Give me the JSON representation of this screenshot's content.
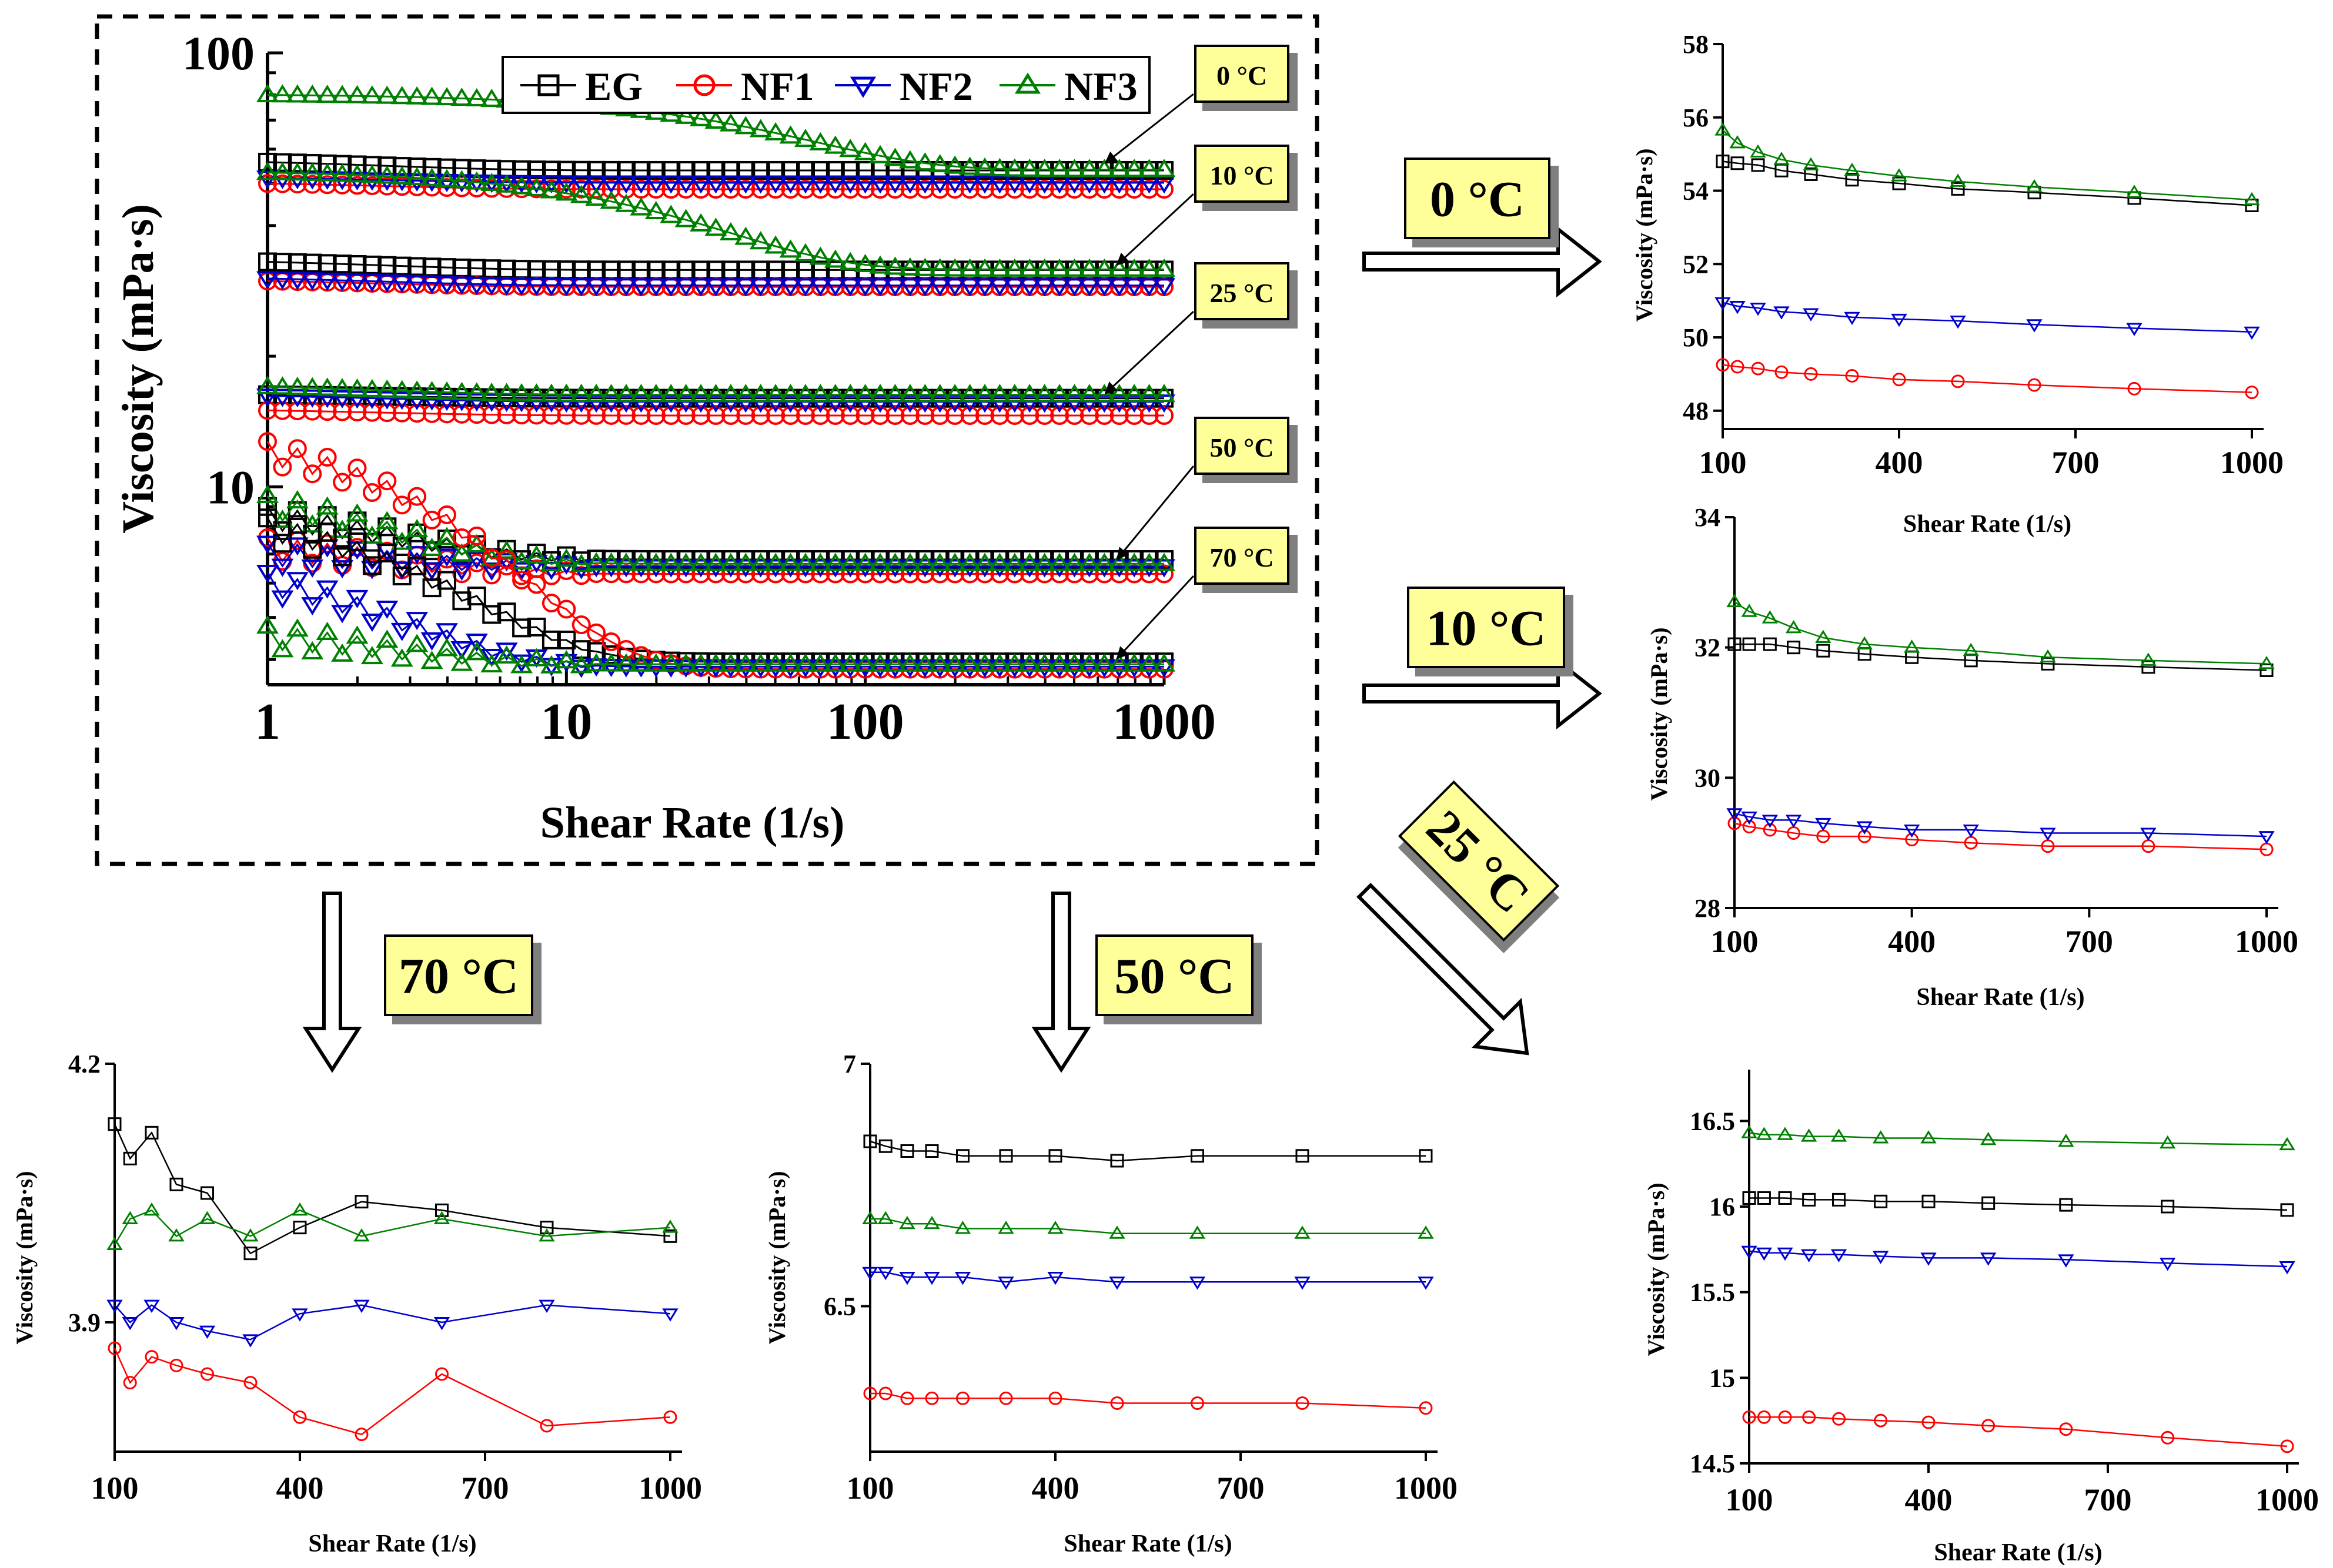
{
  "colors": {
    "EG": "#000000",
    "NF1": "#ff0000",
    "NF2": "#0000cc",
    "NF3": "#008000",
    "callout_fill": "#ffff99",
    "callout_shadow": "#7f7f7f"
  },
  "legend": [
    "EG",
    "NF1",
    "NF2",
    "NF3"
  ],
  "main_chart": {
    "xlabel": "Shear Rate (1/s)",
    "ylabel": "Viscosity (mPa·s)",
    "xticks": [
      "1",
      "10",
      "100",
      "1000"
    ],
    "yticks": [
      "100",
      "10"
    ],
    "temp_labels": [
      "0 °C",
      "10 °C",
      "25 °C",
      "50 °C",
      "70 °C"
    ]
  },
  "arrow_labels": {
    "t0": "0 °C",
    "t10": "10 °C",
    "t25": "25 °C",
    "t50": "50 °C",
    "t70": "70 °C"
  },
  "chart_data": [
    {
      "id": "main",
      "type": "scatter",
      "title": "",
      "xlabel": "Shear Rate (1/s)",
      "ylabel": "Viscosity (mPa·s)",
      "xscale": "log",
      "yscale": "log",
      "xlim": [
        1,
        1000
      ],
      "ylim": [
        3.5,
        100
      ],
      "legend": "top-right",
      "curves": [
        {
          "temp": "0 °C",
          "series": {
            "EG": [
              56,
              53.6
            ],
            "NF1": [
              50,
              48.5
            ],
            "NF2": [
              51.5,
              50.2
            ],
            "NF3": [
              80,
              53.8
            ]
          },
          "decay": {
            "NF3": 60
          }
        },
        {
          "temp": "10 °C",
          "series": {
            "EG": [
              33,
              31.6
            ],
            "NF1": [
              29.8,
              28.9
            ],
            "NF2": [
              30.2,
              29.1
            ],
            "NF3": [
              53,
              31.7
            ]
          },
          "decay": {
            "NF3": 30
          }
        },
        {
          "temp": "25 °C",
          "series": {
            "EG": [
              16.3,
              16.0
            ],
            "NF1": [
              15.0,
              14.6
            ],
            "NF2": [
              16.2,
              15.7
            ],
            "NF3": [
              17.0,
              16.3
            ]
          },
          "decay": {}
        },
        {
          "temp": "50 °C",
          "series": {
            "EG": [
              8.5,
              6.8
            ],
            "NF1": [
              7.2,
              6.3
            ],
            "NF2": [
              7.0,
              6.55
            ],
            "NF3": [
              9.0,
              6.65
            ]
          },
          "decay": {}
        },
        {
          "temp": "70 °C",
          "series": {
            "EG": [
              8.0,
              3.95
            ],
            "NF1": [
              12.0,
              3.8
            ],
            "NF2": [
              6.0,
              3.85
            ],
            "NF3": [
              4.5,
              3.9
            ]
          },
          "decay": {
            "EG": 4,
            "NF1": 5,
            "NF2": 2.5
          }
        }
      ]
    },
    {
      "id": "t0",
      "type": "line",
      "xlabel": "Shear Rate (1/s)",
      "ylabel": "Viscosity (mPa·s)",
      "xticks": [
        100,
        400,
        700,
        1000
      ],
      "ylim": [
        47.5,
        58
      ],
      "yticks": [
        48,
        50,
        52,
        54,
        56,
        58
      ],
      "x": [
        100,
        125,
        160,
        200,
        250,
        320,
        400,
        500,
        630,
        800,
        1000
      ],
      "series": [
        {
          "name": "EG",
          "values": [
            54.8,
            54.75,
            54.7,
            54.55,
            54.45,
            54.3,
            54.2,
            54.05,
            53.95,
            53.8,
            53.6
          ]
        },
        {
          "name": "NF1",
          "values": [
            49.25,
            49.2,
            49.15,
            49.05,
            49.0,
            48.95,
            48.85,
            48.8,
            48.7,
            48.6,
            48.5
          ]
        },
        {
          "name": "NF2",
          "values": [
            50.95,
            50.85,
            50.8,
            50.7,
            50.65,
            50.55,
            50.5,
            50.45,
            50.35,
            50.25,
            50.15
          ]
        },
        {
          "name": "NF3",
          "values": [
            55.65,
            55.3,
            55.05,
            54.85,
            54.7,
            54.55,
            54.4,
            54.25,
            54.1,
            53.95,
            53.75
          ]
        }
      ]
    },
    {
      "id": "t10",
      "type": "line",
      "xlabel": "Shear Rate (1/s)",
      "ylabel": "Viscosity (mPa·s)",
      "xticks": [
        100,
        400,
        700,
        1000
      ],
      "ylim": [
        28,
        34
      ],
      "yticks": [
        28,
        30,
        32,
        34
      ],
      "x": [
        100,
        125,
        160,
        200,
        250,
        320,
        400,
        500,
        630,
        800,
        1000
      ],
      "series": [
        {
          "name": "EG",
          "values": [
            32.05,
            32.05,
            32.05,
            32.0,
            31.95,
            31.9,
            31.85,
            31.8,
            31.75,
            31.7,
            31.65
          ]
        },
        {
          "name": "NF1",
          "values": [
            29.3,
            29.25,
            29.2,
            29.15,
            29.1,
            29.1,
            29.05,
            29.0,
            28.95,
            28.95,
            28.9
          ]
        },
        {
          "name": "NF2",
          "values": [
            29.45,
            29.4,
            29.35,
            29.35,
            29.3,
            29.25,
            29.2,
            29.2,
            29.15,
            29.15,
            29.1
          ]
        },
        {
          "name": "NF3",
          "values": [
            32.7,
            32.55,
            32.45,
            32.3,
            32.15,
            32.05,
            32.0,
            31.95,
            31.85,
            31.8,
            31.75
          ]
        }
      ]
    },
    {
      "id": "t25",
      "type": "line",
      "xlabel": "Shear Rate (1/s)",
      "ylabel": "Viscosity (mPa·s)",
      "xticks": [
        100,
        400,
        700,
        1000
      ],
      "ylim": [
        14.5,
        16.8
      ],
      "yticks": [
        14.5,
        15,
        15.5,
        16,
        16.5
      ],
      "ytickLabels": [
        "14.5",
        "15",
        "15.5",
        "16",
        "16.5"
      ],
      "x": [
        100,
        125,
        160,
        200,
        250,
        320,
        400,
        500,
        630,
        800,
        1000
      ],
      "series": [
        {
          "name": "EG",
          "values": [
            16.05,
            16.05,
            16.05,
            16.04,
            16.04,
            16.03,
            16.03,
            16.02,
            16.01,
            16.0,
            15.98
          ]
        },
        {
          "name": "NF1",
          "values": [
            14.77,
            14.77,
            14.77,
            14.77,
            14.76,
            14.75,
            14.74,
            14.72,
            14.7,
            14.65,
            14.6
          ]
        },
        {
          "name": "NF2",
          "values": [
            15.74,
            15.73,
            15.73,
            15.72,
            15.72,
            15.71,
            15.7,
            15.7,
            15.69,
            15.67,
            15.65
          ]
        },
        {
          "name": "NF3",
          "values": [
            16.43,
            16.42,
            16.42,
            16.41,
            16.41,
            16.4,
            16.4,
            16.39,
            16.38,
            16.37,
            16.36
          ]
        }
      ]
    },
    {
      "id": "t50",
      "type": "line",
      "xlabel": "Shear Rate (1/s)",
      "ylabel": "Viscosity (mPa·s)",
      "xticks": [
        100,
        400,
        700,
        1000
      ],
      "ylim": [
        6.2,
        7.0
      ],
      "yticks": [
        6.5,
        7.0
      ],
      "ytickLabels": [
        "6.5",
        "7"
      ],
      "x": [
        100,
        125,
        160,
        200,
        250,
        320,
        400,
        500,
        630,
        800,
        1000
      ],
      "series": [
        {
          "name": "EG",
          "values": [
            6.84,
            6.83,
            6.82,
            6.82,
            6.81,
            6.81,
            6.81,
            6.8,
            6.81,
            6.81,
            6.81
          ]
        },
        {
          "name": "NF1",
          "values": [
            6.32,
            6.32,
            6.31,
            6.31,
            6.31,
            6.31,
            6.31,
            6.3,
            6.3,
            6.3,
            6.29
          ]
        },
        {
          "name": "NF2",
          "values": [
            6.57,
            6.57,
            6.56,
            6.56,
            6.56,
            6.55,
            6.56,
            6.55,
            6.55,
            6.55,
            6.55
          ]
        },
        {
          "name": "NF3",
          "values": [
            6.68,
            6.68,
            6.67,
            6.67,
            6.66,
            6.66,
            6.66,
            6.65,
            6.65,
            6.65,
            6.65
          ]
        }
      ]
    },
    {
      "id": "t70",
      "type": "line",
      "xlabel": "Shear Rate (1/s)",
      "ylabel": "Viscosity (mPa·s)",
      "xticks": [
        100,
        400,
        700,
        1000
      ],
      "ylim": [
        3.75,
        4.2
      ],
      "yticks": [
        3.9,
        4.2
      ],
      "ytickLabels": [
        "3.9",
        "4.2"
      ],
      "x": [
        100,
        125,
        160,
        200,
        250,
        320,
        400,
        500,
        630,
        800,
        1000
      ],
      "series": [
        {
          "name": "EG",
          "values": [
            4.13,
            4.09,
            4.12,
            4.06,
            4.05,
            3.98,
            4.01,
            4.04,
            4.03,
            4.01,
            4.0
          ]
        },
        {
          "name": "NF1",
          "values": [
            3.87,
            3.83,
            3.86,
            3.85,
            3.84,
            3.83,
            3.79,
            3.77,
            3.84,
            3.78,
            3.79
          ]
        },
        {
          "name": "NF2",
          "values": [
            3.92,
            3.9,
            3.92,
            3.9,
            3.89,
            3.88,
            3.91,
            3.92,
            3.9,
            3.92,
            3.91
          ]
        },
        {
          "name": "NF3",
          "values": [
            3.99,
            4.02,
            4.03,
            4.0,
            4.02,
            4.0,
            4.03,
            4.0,
            4.02,
            4.0,
            4.01
          ]
        }
      ]
    }
  ]
}
